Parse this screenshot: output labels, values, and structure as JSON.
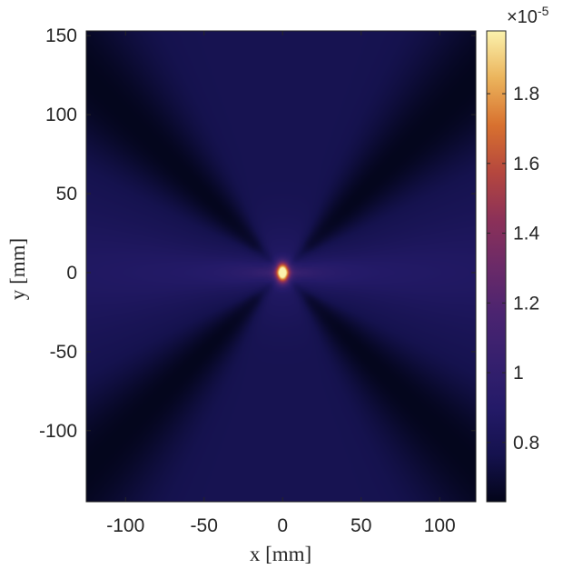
{
  "chart_data": {
    "type": "heatmap",
    "title": "",
    "xlabel": "x [mm]",
    "ylabel": "y [mm]",
    "xlim": [
      -125,
      123
    ],
    "ylim": [
      -145,
      153
    ],
    "xticks": [
      -100,
      -50,
      0,
      50,
      100
    ],
    "xtick_labels": [
      "-100",
      "-50",
      "0",
      "50",
      "100"
    ],
    "yticks": [
      -100,
      -50,
      0,
      50,
      100,
      150
    ],
    "ytick_labels": [
      "-100",
      "-50",
      "0",
      "50",
      "100",
      "150"
    ],
    "colormap": "thermal",
    "colorbar": {
      "range": [
        6.3e-06,
        1.98e-05
      ],
      "multiplier": "×10",
      "exponent": "-5",
      "ticks": [
        0.8,
        1.0,
        1.2,
        1.4,
        1.6,
        1.8
      ],
      "tick_labels": [
        "0.8",
        "1",
        "1.2",
        "1.4",
        "1.6",
        "1.8"
      ]
    },
    "field": {
      "peak": {
        "x": 0,
        "y": 0,
        "value": 1.98e-05
      },
      "background_value": 7.8e-06,
      "minimum_value": 6.3e-06,
      "dark_bands_through_origin": "diagonal X pattern",
      "bright_band": "horizontal along y = 0"
    },
    "grid": false,
    "box": true
  }
}
